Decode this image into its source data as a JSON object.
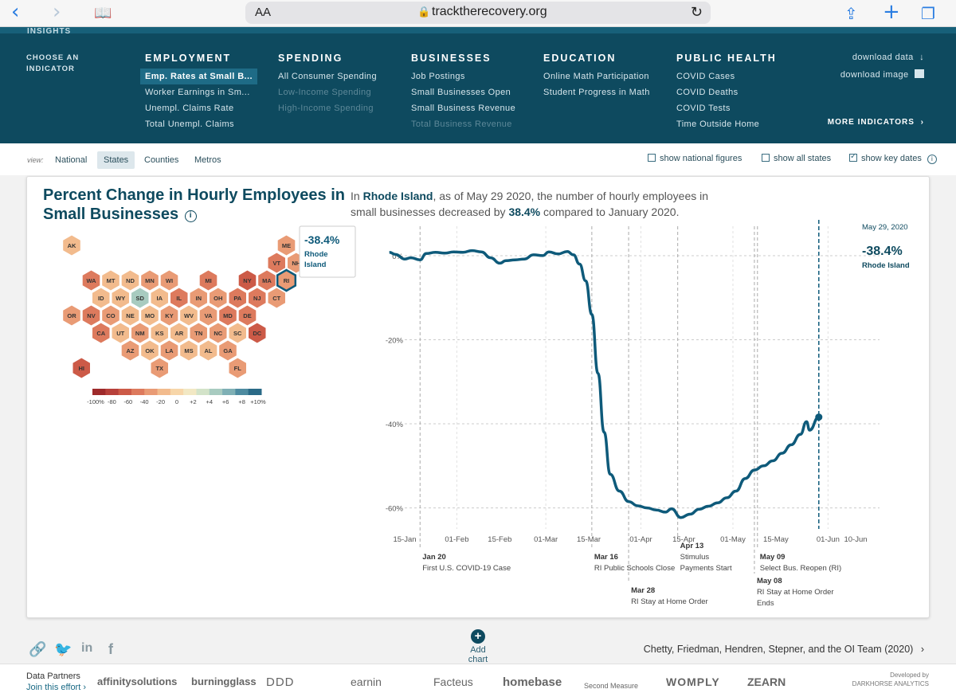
{
  "browser": {
    "aa": "AA",
    "url": "tracktherecovery.org"
  },
  "header": {
    "brand": "INSIGHTS",
    "choose_label": "CHOOSE AN INDICATOR",
    "columns": [
      {
        "title": "EMPLOYMENT",
        "items": [
          "Emp. Rates at Small B...",
          "Worker Earnings in Sm...",
          "Unempl. Claims Rate",
          "Total Unempl. Claims"
        ]
      },
      {
        "title": "SPENDING",
        "items": [
          "All Consumer Spending",
          "Low-Income Spending",
          "High-Income Spending"
        ]
      },
      {
        "title": "BUSINESSES",
        "items": [
          "Job Postings",
          "Small Businesses Open",
          "Small Business Revenue",
          "Total Business Revenue"
        ]
      },
      {
        "title": "EDUCATION",
        "items": [
          "Online Math Participation",
          "Student Progress in Math"
        ]
      },
      {
        "title": "PUBLIC HEALTH",
        "items": [
          "COVID Cases",
          "COVID Deaths",
          "COVID Tests",
          "Time Outside Home"
        ]
      }
    ],
    "download_data": "download data",
    "download_image": "download image",
    "more_indicators": "MORE INDICATORS"
  },
  "view": {
    "label": "view:",
    "options": [
      "National",
      "States",
      "Counties",
      "Metros"
    ],
    "selected": "States",
    "checks": [
      {
        "label": "show national figures",
        "checked": false
      },
      {
        "label": "show all states",
        "checked": false
      },
      {
        "label": "show key dates",
        "checked": true
      }
    ]
  },
  "card": {
    "title": "Percent Change in Hourly Employees in Small Businesses",
    "desc_pre": "In ",
    "desc_state": "Rhode Island",
    "desc_mid": ", as of May 29 2020, the number of hourly employees in small businesses decreased by ",
    "desc_value": "38.4%",
    "desc_post": " compared to January 2020."
  },
  "map": {
    "tooltip_value": "-38.4%",
    "tooltip_state": "Rhode Island",
    "selected": "RI",
    "accent": "#0e5a7a",
    "states": [
      {
        "s": "AK",
        "v": -30
      },
      {
        "s": "ME",
        "v": -45
      },
      {
        "s": "VT",
        "v": -55
      },
      {
        "s": "NH",
        "v": -48
      },
      {
        "s": "WA",
        "v": -55
      },
      {
        "s": "MT",
        "v": -35
      },
      {
        "s": "ND",
        "v": -28
      },
      {
        "s": "MN",
        "v": -45
      },
      {
        "s": "WI",
        "v": -42
      },
      {
        "s": "MI",
        "v": -60
      },
      {
        "s": "NY",
        "v": -68
      },
      {
        "s": "MA",
        "v": -60
      },
      {
        "s": "RI",
        "v": -38
      },
      {
        "s": "ID",
        "v": -25
      },
      {
        "s": "WY",
        "v": -28
      },
      {
        "s": "SD",
        "v": 2
      },
      {
        "s": "IA",
        "v": -30
      },
      {
        "s": "IL",
        "v": -58
      },
      {
        "s": "IN",
        "v": -40
      },
      {
        "s": "OH",
        "v": -45
      },
      {
        "s": "PA",
        "v": -55
      },
      {
        "s": "NJ",
        "v": -60
      },
      {
        "s": "CT",
        "v": -50
      },
      {
        "s": "OR",
        "v": -45
      },
      {
        "s": "NV",
        "v": -52
      },
      {
        "s": "CO",
        "v": -45
      },
      {
        "s": "NE",
        "v": -22
      },
      {
        "s": "MO",
        "v": -35
      },
      {
        "s": "KY",
        "v": -38
      },
      {
        "s": "WV",
        "v": -35
      },
      {
        "s": "VA",
        "v": -42
      },
      {
        "s": "MD",
        "v": -55
      },
      {
        "s": "DE",
        "v": -52
      },
      {
        "s": "CA",
        "v": -52
      },
      {
        "s": "UT",
        "v": -28
      },
      {
        "s": "NM",
        "v": -45
      },
      {
        "s": "KS",
        "v": -28
      },
      {
        "s": "AR",
        "v": -35
      },
      {
        "s": "TN",
        "v": -38
      },
      {
        "s": "NC",
        "v": -40
      },
      {
        "s": "SC",
        "v": -35
      },
      {
        "s": "DC",
        "v": -72
      },
      {
        "s": "AZ",
        "v": -42
      },
      {
        "s": "OK",
        "v": -30
      },
      {
        "s": "LA",
        "v": -40
      },
      {
        "s": "MS",
        "v": -30
      },
      {
        "s": "AL",
        "v": -32
      },
      {
        "s": "GA",
        "v": -38
      },
      {
        "s": "HI",
        "v": -70
      },
      {
        "s": "TX",
        "v": -38
      },
      {
        "s": "FL",
        "v": -45
      }
    ],
    "legend_labels": [
      "-100%",
      "-80",
      "-60",
      "-40",
      "-20",
      "0",
      "+2",
      "+4",
      "+6",
      "+8",
      "+10%"
    ],
    "legend_colors": [
      "#9e2a2b",
      "#b7403a",
      "#cc5a47",
      "#dd7a5d",
      "#e99b75",
      "#f2bb8d",
      "#f7d6a9",
      "#f2e8c4",
      "#d3e3c9",
      "#a8cbc0",
      "#7fb0b5",
      "#4d8ba0",
      "#2a6a87"
    ]
  },
  "chart_data": {
    "type": "line",
    "title": "Percent Change in Hourly Employees in Small Businesses",
    "series": [
      {
        "name": "Rhode Island",
        "points": [
          [
            "2020-01-10",
            0.8
          ],
          [
            "2020-01-12",
            0.3
          ],
          [
            "2020-01-15",
            -0.8
          ],
          [
            "2020-01-17",
            -0.5
          ],
          [
            "2020-01-20",
            -1.0
          ],
          [
            "2020-01-22",
            0.5
          ],
          [
            "2020-01-25",
            0.8
          ],
          [
            "2020-01-28",
            0.6
          ],
          [
            "2020-01-31",
            0.9
          ],
          [
            "2020-02-03",
            0.8
          ],
          [
            "2020-02-06",
            1.2
          ],
          [
            "2020-02-09",
            0.9
          ],
          [
            "2020-02-12",
            -0.5
          ],
          [
            "2020-02-15",
            -1.8
          ],
          [
            "2020-02-17",
            -1.2
          ],
          [
            "2020-02-20",
            -1.0
          ],
          [
            "2020-02-23",
            -0.8
          ],
          [
            "2020-02-26",
            0.2
          ],
          [
            "2020-02-29",
            0.0
          ],
          [
            "2020-03-02",
            0.9
          ],
          [
            "2020-03-05",
            0.4
          ],
          [
            "2020-03-08",
            1.0
          ],
          [
            "2020-03-10",
            0.2
          ],
          [
            "2020-03-12",
            -2.0
          ],
          [
            "2020-03-14",
            -6.0
          ],
          [
            "2020-03-16",
            -14.0
          ],
          [
            "2020-03-18",
            -28.0
          ],
          [
            "2020-03-20",
            -42.0
          ],
          [
            "2020-03-22",
            -52.0
          ],
          [
            "2020-03-25",
            -56.0
          ],
          [
            "2020-03-28",
            -58.5
          ],
          [
            "2020-03-31",
            -59.5
          ],
          [
            "2020-04-03",
            -60.0
          ],
          [
            "2020-04-06",
            -60.5
          ],
          [
            "2020-04-09",
            -61.0
          ],
          [
            "2020-04-11",
            -60.2
          ],
          [
            "2020-04-14",
            -62.3
          ],
          [
            "2020-04-17",
            -61.5
          ],
          [
            "2020-04-20",
            -60.3
          ],
          [
            "2020-04-23",
            -59.6
          ],
          [
            "2020-04-26",
            -58.8
          ],
          [
            "2020-04-29",
            -57.6
          ],
          [
            "2020-05-02",
            -56.0
          ],
          [
            "2020-05-05",
            -53.0
          ],
          [
            "2020-05-08",
            -51.0
          ],
          [
            "2020-05-11",
            -50.0
          ],
          [
            "2020-05-14",
            -48.8
          ],
          [
            "2020-05-17",
            -47.0
          ],
          [
            "2020-05-20",
            -45.0
          ],
          [
            "2020-05-23",
            -42.5
          ],
          [
            "2020-05-25",
            -39.5
          ],
          [
            "2020-05-26",
            -41.5
          ],
          [
            "2020-05-29",
            -38.4
          ]
        ]
      }
    ],
    "x_ticks": [
      "15-Jan",
      "01-Feb",
      "15-Feb",
      "01-Mar",
      "15-Mar",
      "01-Apr",
      "15-Apr",
      "01-May",
      "15-May",
      "01-Jun",
      "10-Jun"
    ],
    "y_ticks": [
      "0%",
      "-20%",
      "-40%",
      "-60%"
    ],
    "ylim": [
      -65,
      7
    ],
    "highlight": {
      "date": "May 29, 2020",
      "value": "-38.4%",
      "label": "Rhode Island"
    },
    "key_dates": [
      {
        "date": "Jan 20",
        "text": "First U.S. COVID-19 Case"
      },
      {
        "date": "Mar 16",
        "text": "RI Public Schools Close"
      },
      {
        "date": "Mar 28",
        "text": "RI Stay at Home Order"
      },
      {
        "date": "Apr 13",
        "text": "Stimulus Payments Start"
      },
      {
        "date": "May 09",
        "text": "Select Bus. Reopen (RI)"
      },
      {
        "date": "May 08",
        "text": "RI Stay at Home Order Ends"
      }
    ],
    "line_color": "#0e5a7a"
  },
  "footer": {
    "add_chart": "Add chart",
    "citation": "Chetty, Friedman, Hendren, Stepner, and the OI Team (2020)",
    "partners_label": "Data Partners",
    "join": "Join this effort",
    "logos": [
      "affinitysolutions",
      "burningglass",
      "DDD",
      "earnin",
      "Facteus",
      "homebase",
      "Second Measure",
      "WOMPLY",
      "ZEARN"
    ],
    "developed_by": "Developed by",
    "developer": "DARKHORSE ANALYTICS"
  }
}
